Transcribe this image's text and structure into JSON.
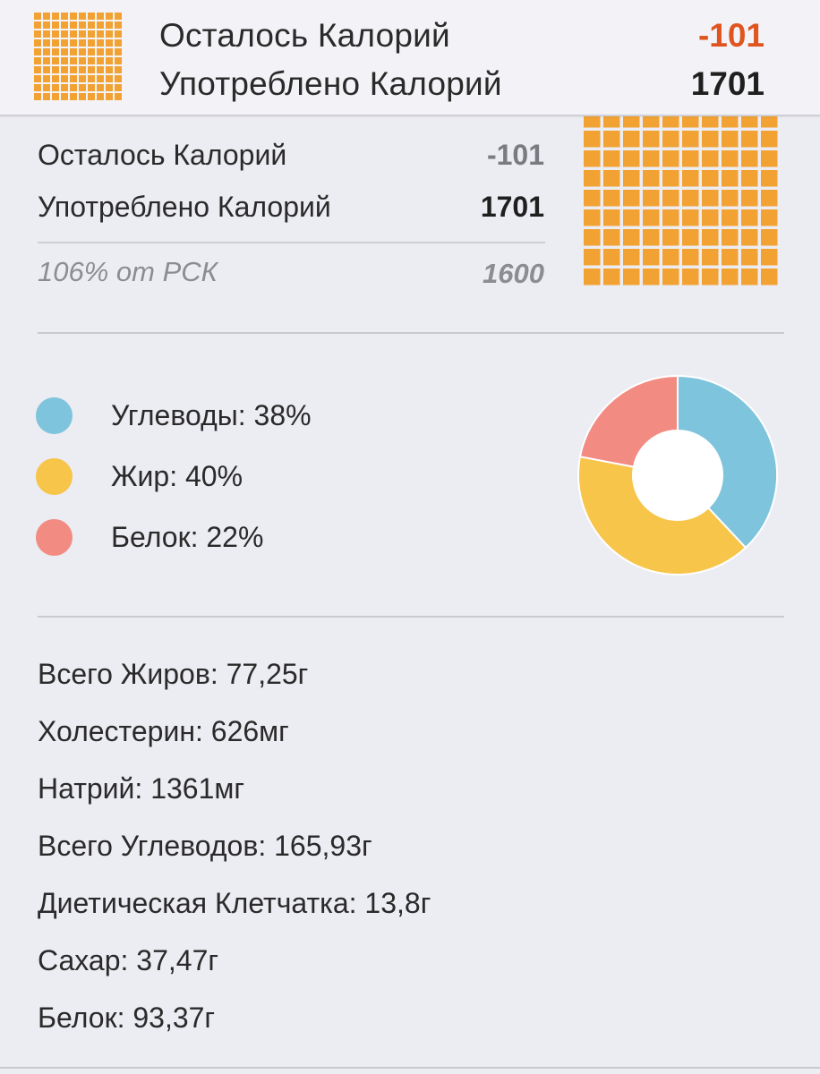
{
  "header": {
    "remaining_label": "Осталось Калорий",
    "remaining_value": "-101",
    "consumed_label": "Употреблено Калорий",
    "consumed_value": "1701",
    "remaining_color": "#e0541f",
    "consumed_color": "#1f1f1f"
  },
  "summary": {
    "remaining_label": "Осталось Калорий",
    "remaining_value": "-101",
    "consumed_label": "Употреблено Калорий",
    "consumed_value": "1701",
    "rsk_label": "106% от РСК",
    "rsk_value": "1600",
    "remaining_color": "#7a7a80",
    "consumed_color": "#1f1f1f",
    "grid_icon": "calorie-grid-icon",
    "grid_fill_fraction": 1.0,
    "grid_color": "#f2a233"
  },
  "macros": {
    "legend": [
      {
        "label": "Углеводы: 38%",
        "color": "#7ec4dc",
        "percent": 38
      },
      {
        "label": "Жир: 40%",
        "color": "#f8c54b",
        "percent": 40
      },
      {
        "label": "Белок: 22%",
        "color": "#f28b82",
        "percent": 22
      }
    ]
  },
  "nutrients": [
    "Всего Жиров: 77,25г",
    "Холестерин: 626мг",
    "Натрий: 1361мг",
    "Всего Углеводов: 165,93г",
    "Диетическая Клетчатка: 13,8г",
    "Сахар: 37,47г",
    "Белок: 93,37г"
  ]
}
